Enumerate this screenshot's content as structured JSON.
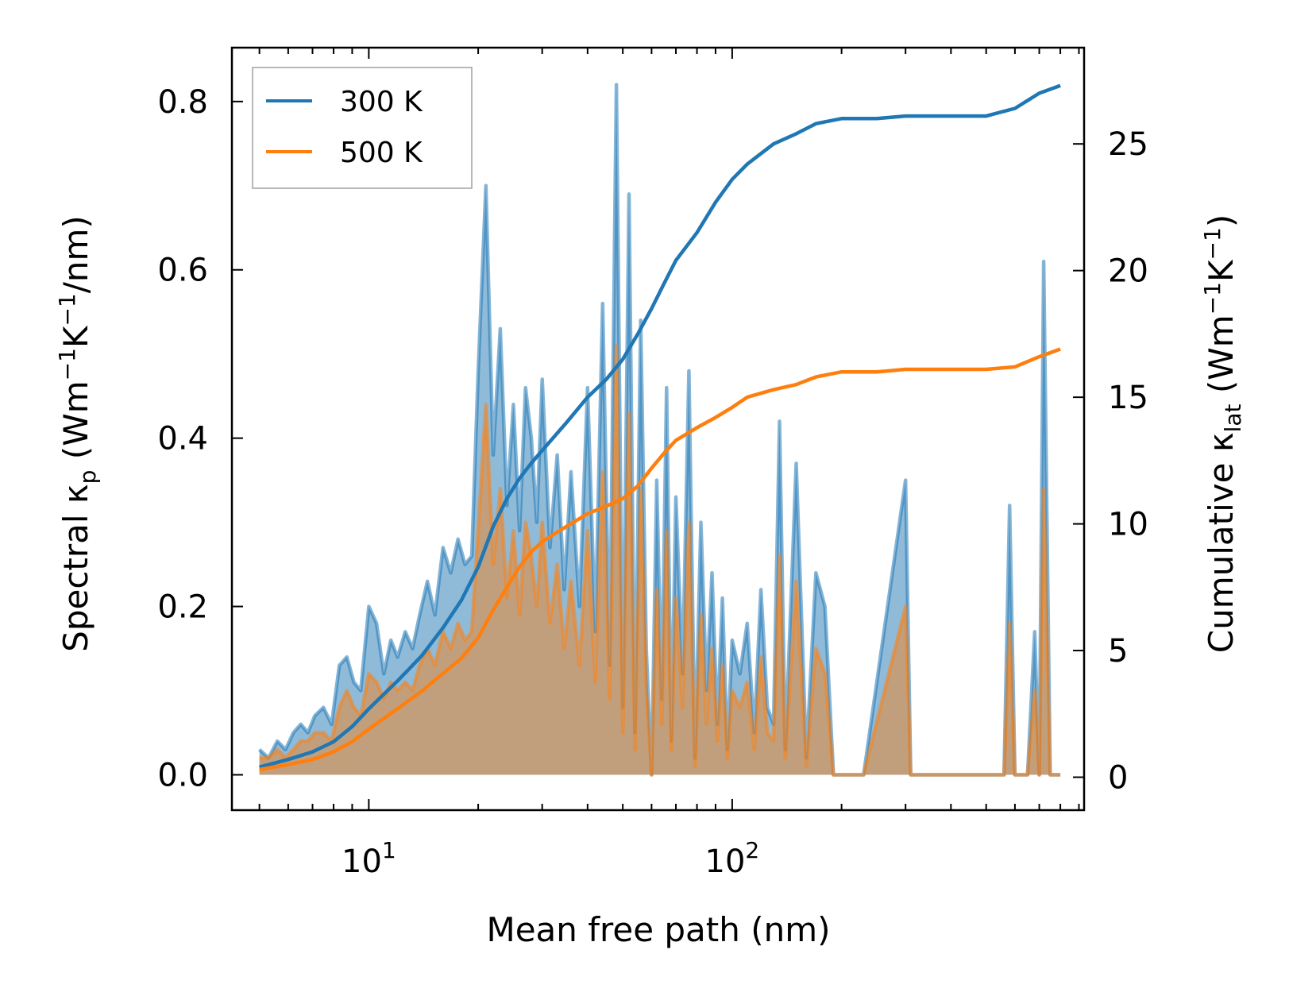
{
  "chart_data": {
    "type": "line",
    "xscale": "log",
    "xlabel": "Mean free path (nm)",
    "xlim": [
      4.2,
      930
    ],
    "x_ticks": [
      {
        "value": 10,
        "base": "10",
        "exp": "1"
      },
      {
        "value": 100,
        "base": "10",
        "exp": "2"
      }
    ],
    "left_axis": {
      "label": "Spectral κ_p (Wm^-1K^-1/nm)",
      "label_parts": {
        "pre": "Spectral κ",
        "sub": "p",
        "mid": " (Wm",
        "sup1": "−1",
        "k": "K",
        "sup2": "−1",
        "post": "/nm)"
      },
      "ylim": [
        -0.042,
        0.864
      ],
      "ticks": [
        "0.0",
        "0.2",
        "0.4",
        "0.6",
        "0.8"
      ]
    },
    "right_axis": {
      "label": "Cumulative κ_lat (Wm^-1K^-1)",
      "label_parts": {
        "pre": "Cumulative κ",
        "sub": "lat",
        "mid": " (Wm",
        "sup1": "−1",
        "k": "K",
        "sup2": "−1",
        "post": ")"
      },
      "ylim": [
        -1.3,
        28.8
      ],
      "ticks": [
        "0",
        "5",
        "10",
        "15",
        "20",
        "25"
      ]
    },
    "legend": {
      "position": "top-left",
      "entries": [
        "300 K",
        "500 K"
      ]
    },
    "series": [
      {
        "name": "300 K",
        "color": "#1f77b4",
        "fill_color": "#1f77b4",
        "cumulative": {
          "x": [
            5,
            6,
            7,
            8,
            9,
            10,
            12,
            14,
            16,
            18,
            20,
            22,
            24,
            26,
            28,
            30,
            35,
            40,
            45,
            50,
            55,
            60,
            65,
            70,
            80,
            90,
            100,
            110,
            130,
            150,
            170,
            200,
            250,
            300,
            400,
            500,
            600,
            700,
            800
          ],
          "values": [
            0.4,
            0.7,
            1.0,
            1.4,
            2.0,
            2.7,
            3.8,
            4.8,
            5.9,
            7.0,
            8.3,
            9.9,
            11.0,
            11.8,
            12.4,
            12.9,
            14.0,
            15.0,
            15.7,
            16.5,
            17.5,
            18.5,
            19.5,
            20.4,
            21.5,
            22.7,
            23.6,
            24.2,
            25.0,
            25.4,
            25.8,
            26.0,
            26.0,
            26.1,
            26.1,
            26.1,
            26.4,
            27.0,
            27.3
          ]
        },
        "spectral": {
          "x": [
            5,
            5.3,
            5.6,
            5.9,
            6.2,
            6.5,
            6.8,
            7.1,
            7.5,
            7.9,
            8.3,
            8.7,
            9.1,
            9.5,
            10,
            10.5,
            11,
            11.5,
            12,
            12.6,
            13.2,
            13.8,
            14.5,
            15.2,
            16,
            16.8,
            17.6,
            18.4,
            19.2,
            20,
            21,
            22,
            23,
            24,
            25,
            26,
            27,
            28,
            29,
            30,
            31.5,
            33,
            34.5,
            36,
            38,
            40,
            42,
            44,
            46,
            48,
            50,
            52,
            54,
            56,
            58,
            60,
            62,
            64,
            66,
            68,
            70,
            73,
            76,
            79,
            82,
            85,
            88,
            91,
            94,
            97,
            100,
            105,
            110,
            115,
            120,
            125,
            130,
            135,
            140,
            150,
            160,
            170,
            180,
            190,
            200,
            215,
            230,
            300,
            310,
            330,
            560,
            580,
            600,
            650,
            680,
            700,
            720,
            750,
            790,
            800
          ],
          "values": [
            0.03,
            0.02,
            0.04,
            0.03,
            0.05,
            0.06,
            0.05,
            0.07,
            0.08,
            0.06,
            0.13,
            0.14,
            0.11,
            0.1,
            0.2,
            0.18,
            0.12,
            0.16,
            0.14,
            0.17,
            0.15,
            0.19,
            0.23,
            0.19,
            0.27,
            0.24,
            0.28,
            0.25,
            0.26,
            0.48,
            0.7,
            0.38,
            0.53,
            0.32,
            0.44,
            0.29,
            0.46,
            0.4,
            0.3,
            0.47,
            0.27,
            0.38,
            0.22,
            0.36,
            0.2,
            0.46,
            0.17,
            0.56,
            0.13,
            0.82,
            0.08,
            0.69,
            0.05,
            0.54,
            0.15,
            0.0,
            0.35,
            0.09,
            0.46,
            0.04,
            0.33,
            0.12,
            0.48,
            0.02,
            0.3,
            0.1,
            0.24,
            0.06,
            0.21,
            0.03,
            0.16,
            0.12,
            0.18,
            0.05,
            0.22,
            0.08,
            0.06,
            0.42,
            0.03,
            0.37,
            0.02,
            0.24,
            0.2,
            0.0,
            0.0,
            0.0,
            0.0,
            0.35,
            0.0,
            0.0,
            0.0,
            0.32,
            0.0,
            0.0,
            0.17,
            0.0,
            0.61,
            0.0,
            0.0,
            0.0
          ]
        }
      },
      {
        "name": "500 K",
        "color": "#ff7f0e",
        "fill_color": "#ff7f0e",
        "cumulative": {
          "x": [
            5,
            6,
            7,
            8,
            9,
            10,
            12,
            14,
            16,
            18,
            20,
            22,
            24,
            26,
            28,
            30,
            35,
            40,
            45,
            50,
            55,
            60,
            65,
            70,
            80,
            90,
            100,
            110,
            130,
            150,
            170,
            200,
            250,
            300,
            400,
            500,
            600,
            700,
            800
          ],
          "values": [
            0.3,
            0.5,
            0.7,
            1.0,
            1.4,
            1.9,
            2.7,
            3.4,
            4.1,
            4.7,
            5.5,
            6.6,
            7.5,
            8.3,
            8.9,
            9.3,
            9.9,
            10.4,
            10.7,
            11.0,
            11.5,
            12.2,
            12.8,
            13.3,
            13.8,
            14.2,
            14.6,
            15.0,
            15.3,
            15.5,
            15.8,
            16.0,
            16.0,
            16.1,
            16.1,
            16.1,
            16.2,
            16.6,
            16.9
          ]
        },
        "spectral": {
          "x": [
            5,
            5.3,
            5.6,
            5.9,
            6.2,
            6.5,
            6.8,
            7.1,
            7.5,
            7.9,
            8.3,
            8.7,
            9.1,
            9.5,
            10,
            10.5,
            11,
            11.5,
            12,
            12.6,
            13.2,
            13.8,
            14.5,
            15.2,
            16,
            16.8,
            17.6,
            18.4,
            19.2,
            20,
            21,
            22,
            23,
            24,
            25,
            26,
            27,
            28,
            29,
            30,
            31.5,
            33,
            34.5,
            36,
            38,
            40,
            42,
            44,
            46,
            48,
            50,
            52,
            54,
            56,
            58,
            60,
            62,
            64,
            66,
            68,
            70,
            73,
            76,
            79,
            82,
            85,
            88,
            91,
            94,
            97,
            100,
            105,
            110,
            115,
            120,
            125,
            130,
            135,
            140,
            150,
            160,
            170,
            180,
            190,
            200,
            215,
            230,
            300,
            310,
            330,
            560,
            580,
            600,
            650,
            680,
            700,
            720,
            750,
            790,
            800
          ],
          "values": [
            0.02,
            0.02,
            0.03,
            0.02,
            0.03,
            0.04,
            0.04,
            0.05,
            0.05,
            0.04,
            0.08,
            0.1,
            0.08,
            0.07,
            0.12,
            0.11,
            0.09,
            0.11,
            0.1,
            0.11,
            0.1,
            0.13,
            0.15,
            0.13,
            0.17,
            0.15,
            0.18,
            0.16,
            0.17,
            0.29,
            0.44,
            0.25,
            0.34,
            0.21,
            0.29,
            0.19,
            0.3,
            0.26,
            0.2,
            0.3,
            0.18,
            0.25,
            0.15,
            0.23,
            0.13,
            0.29,
            0.11,
            0.36,
            0.09,
            0.51,
            0.05,
            0.43,
            0.03,
            0.34,
            0.1,
            0.0,
            0.22,
            0.06,
            0.29,
            0.03,
            0.21,
            0.08,
            0.3,
            0.01,
            0.19,
            0.06,
            0.15,
            0.04,
            0.13,
            0.02,
            0.1,
            0.08,
            0.11,
            0.03,
            0.14,
            0.05,
            0.04,
            0.26,
            0.02,
            0.23,
            0.01,
            0.15,
            0.12,
            0.0,
            0.0,
            0.0,
            0.0,
            0.2,
            0.0,
            0.0,
            0.0,
            0.18,
            0.0,
            0.0,
            0.1,
            0.0,
            0.34,
            0.0,
            0.0,
            0.0
          ]
        }
      }
    ]
  }
}
